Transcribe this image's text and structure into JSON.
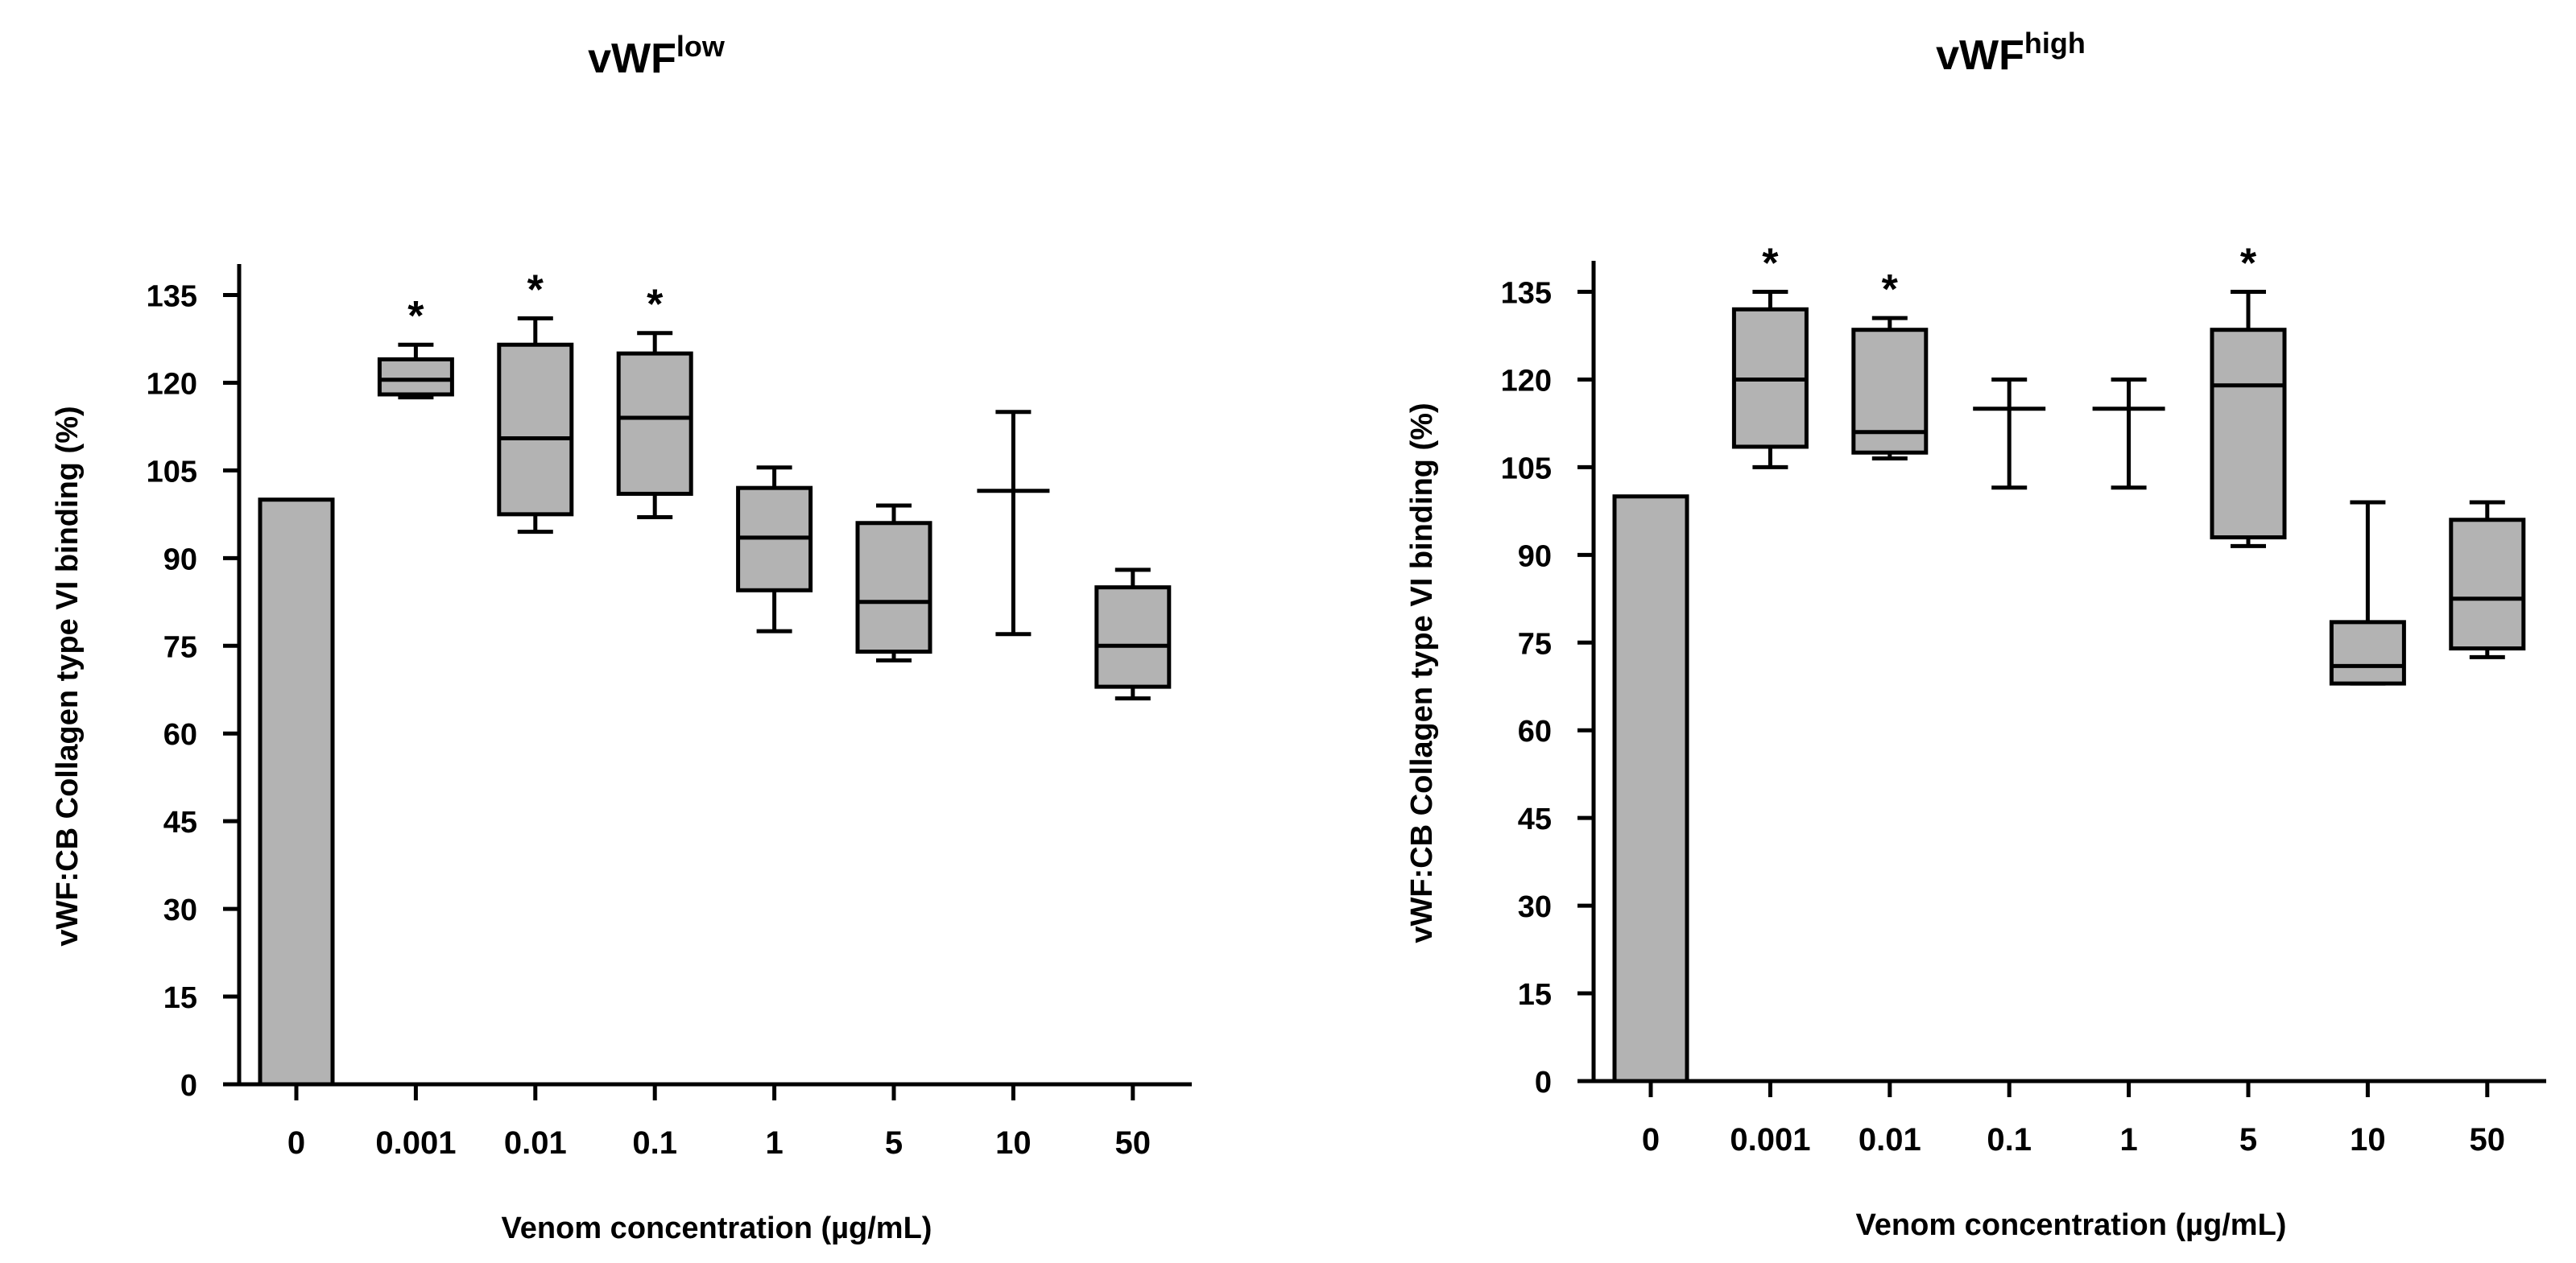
{
  "chart_data": [
    {
      "type": "box",
      "title": "vWF",
      "title_superscript": "low",
      "xlabel": "Venom concentration (µg/mL)",
      "ylabel": "vWF:CB Collagen type VI binding (%)",
      "ylim": [
        0,
        140
      ],
      "yticks": [
        "0",
        "15",
        "30",
        "45",
        "60",
        "75",
        "90",
        "105",
        "120",
        "135"
      ],
      "categories": [
        "0",
        "0.001",
        "0.01",
        "0.1",
        "1",
        "5",
        "10",
        "50"
      ],
      "control": {
        "category": "0",
        "value": 100
      },
      "boxes": [
        {
          "category": "0.001",
          "min": 117.5,
          "q1": 118,
          "median": 120.5,
          "q3": 124,
          "max": 126.5,
          "significant": true
        },
        {
          "category": "0.01",
          "min": 94.5,
          "q1": 97.5,
          "median": 110.5,
          "q3": 126.5,
          "max": 131,
          "significant": true
        },
        {
          "category": "0.1",
          "min": 97,
          "q1": 101,
          "median": 114,
          "q3": 125,
          "max": 128.5,
          "significant": true
        },
        {
          "category": "1",
          "min": 77.5,
          "q1": 84.5,
          "median": 93.5,
          "q3": 102,
          "max": 105.5,
          "significant": false
        },
        {
          "category": "5",
          "min": 72.5,
          "q1": 74,
          "median": 82.5,
          "q3": 96,
          "max": 99,
          "significant": false
        },
        {
          "category": "10",
          "min": 77,
          "q1": 101.5,
          "median": 101.5,
          "q3": 101.5,
          "max": 115,
          "significant": false
        },
        {
          "category": "50",
          "min": 66,
          "q1": 68,
          "median": 75,
          "q3": 85,
          "max": 88,
          "significant": false
        }
      ],
      "significance_marker": "*"
    },
    {
      "type": "box",
      "title": "vWF",
      "title_superscript": "high",
      "xlabel": "Venom concentration (µg/mL)",
      "ylabel": "vWF:CB Collagen type VI binding (%)",
      "ylim": [
        0,
        140
      ],
      "yticks": [
        "0",
        "15",
        "30",
        "45",
        "60",
        "75",
        "90",
        "105",
        "120",
        "135"
      ],
      "categories": [
        "0",
        "0.001",
        "0.01",
        "0.1",
        "1",
        "5",
        "10",
        "50"
      ],
      "control": {
        "category": "0",
        "value": 100
      },
      "boxes": [
        {
          "category": "0.001",
          "min": 105,
          "q1": 108.5,
          "median": 120,
          "q3": 132,
          "max": 135,
          "significant": true
        },
        {
          "category": "0.01",
          "min": 106.5,
          "q1": 107.5,
          "median": 111,
          "q3": 128.5,
          "max": 130.5,
          "significant": true
        },
        {
          "category": "0.1",
          "min": 101.5,
          "q1": 115,
          "median": 115,
          "q3": 115,
          "max": 120,
          "significant": false
        },
        {
          "category": "1",
          "min": 101.5,
          "q1": 115,
          "median": 115,
          "q3": 115,
          "max": 120,
          "significant": false
        },
        {
          "category": "5",
          "min": 91.5,
          "q1": 93,
          "median": 119,
          "q3": 128.5,
          "max": 135,
          "significant": true
        },
        {
          "category": "10",
          "min": 68,
          "q1": 68,
          "median": 71,
          "q3": 78.5,
          "max": 99,
          "significant": false
        },
        {
          "category": "50",
          "min": 72.5,
          "q1": 74,
          "median": 82.5,
          "q3": 96,
          "max": 99,
          "significant": false
        }
      ],
      "significance_marker": "*"
    }
  ],
  "colors": {
    "box_fill": "#b3b3b3",
    "stroke": "#000000",
    "background": "#ffffff"
  }
}
